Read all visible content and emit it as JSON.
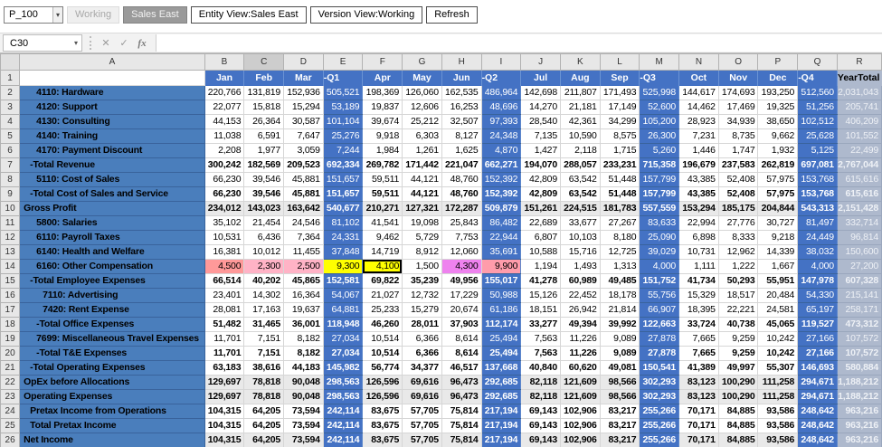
{
  "toolbar": {
    "member_selector": "P_100",
    "working": "Working",
    "sales_east": "Sales East",
    "entity_view": "Entity View:Sales East",
    "version_view": "Version View:Working",
    "refresh": "Refresh"
  },
  "formula_bar": {
    "name_box": "C30",
    "cancel_icon": "✕",
    "enter_icon": "✓",
    "fx_icon": "fx"
  },
  "colors": {
    "header_blue": "#4472c4",
    "row_label_blue": "#4a7ebc",
    "quarter_blue": "#4472c4",
    "year_total_grey": "#aeb9cd",
    "calc_row_grey": "#e9e9e9",
    "selection_border": "#000000"
  },
  "grid": {
    "column_letters": [
      "A",
      "B",
      "C",
      "D",
      "E",
      "F",
      "G",
      "H",
      "I",
      "J",
      "K",
      "L",
      "M",
      "N",
      "O",
      "P",
      "Q",
      "R"
    ],
    "active_column": "C",
    "period_headers": [
      "Jan",
      "Feb",
      "Mar",
      "-Q1",
      "Apr",
      "May",
      "Jun",
      "-Q2",
      "Jul",
      "Aug",
      "Sep",
      "-Q3",
      "Oct",
      "Nov",
      "Dec",
      "-Q4",
      "YearTotal"
    ],
    "quarter_col_indexes": [
      3,
      7,
      11,
      15
    ],
    "year_col_index": 16,
    "selected_cell": "F14",
    "highlight_row": 14,
    "highlight_cells": {
      "B": "#ff9999",
      "C": "#ffb3c6",
      "D": "#ffb3c6",
      "E": "#ffff00",
      "F": "#ffff00",
      "G": "#ffffff",
      "H": "#ee82ee",
      "I": "#ff9cab"
    },
    "rows": [
      {
        "label": "4110: Hardware",
        "indent": 2,
        "type": "member",
        "values": [
          "220,766",
          "131,819",
          "152,936",
          "505,521",
          "198,369",
          "126,060",
          "162,535",
          "486,964",
          "142,698",
          "211,807",
          "171,493",
          "525,998",
          "144,617",
          "174,693",
          "193,250",
          "512,560",
          "2,031,043"
        ]
      },
      {
        "label": "4120: Support",
        "indent": 2,
        "type": "member",
        "values": [
          "22,077",
          "15,818",
          "15,294",
          "53,189",
          "19,837",
          "12,606",
          "16,253",
          "48,696",
          "14,270",
          "21,181",
          "17,149",
          "52,600",
          "14,462",
          "17,469",
          "19,325",
          "51,256",
          "205,741"
        ]
      },
      {
        "label": "4130: Consulting",
        "indent": 2,
        "type": "member",
        "values": [
          "44,153",
          "26,364",
          "30,587",
          "101,104",
          "39,674",
          "25,212",
          "32,507",
          "97,393",
          "28,540",
          "42,361",
          "34,299",
          "105,200",
          "28,923",
          "34,939",
          "38,650",
          "102,512",
          "406,209"
        ]
      },
      {
        "label": "4140: Training",
        "indent": 2,
        "type": "member",
        "values": [
          "11,038",
          "6,591",
          "7,647",
          "25,276",
          "9,918",
          "6,303",
          "8,127",
          "24,348",
          "7,135",
          "10,590",
          "8,575",
          "26,300",
          "7,231",
          "8,735",
          "9,662",
          "25,628",
          "101,552"
        ]
      },
      {
        "label": "4170: Payment Discount",
        "indent": 2,
        "type": "member",
        "values": [
          "2,208",
          "1,977",
          "3,059",
          "7,244",
          "1,984",
          "1,261",
          "1,625",
          "4,870",
          "1,427",
          "2,118",
          "1,715",
          "5,260",
          "1,446",
          "1,747",
          "1,932",
          "5,125",
          "22,499"
        ]
      },
      {
        "label": "-Total Revenue",
        "indent": 1,
        "type": "total",
        "values": [
          "300,242",
          "182,569",
          "209,523",
          "692,334",
          "269,782",
          "171,442",
          "221,047",
          "662,271",
          "194,070",
          "288,057",
          "233,231",
          "715,358",
          "196,679",
          "237,583",
          "262,819",
          "697,081",
          "2,767,044"
        ]
      },
      {
        "label": "5110: Cost of Sales",
        "indent": 2,
        "type": "member",
        "values": [
          "66,230",
          "39,546",
          "45,881",
          "151,657",
          "59,511",
          "44,121",
          "48,760",
          "152,392",
          "42,809",
          "63,542",
          "51,448",
          "157,799",
          "43,385",
          "52,408",
          "57,975",
          "153,768",
          "615,616"
        ]
      },
      {
        "label": "-Total Cost of Sales and Service",
        "indent": 1,
        "type": "total",
        "values": [
          "66,230",
          "39,546",
          "45,881",
          "151,657",
          "59,511",
          "44,121",
          "48,760",
          "152,392",
          "42,809",
          "63,542",
          "51,448",
          "157,799",
          "43,385",
          "52,408",
          "57,975",
          "153,768",
          "615,616"
        ]
      },
      {
        "label": "Gross Profit",
        "indent": 0,
        "type": "calc",
        "values": [
          "234,012",
          "143,023",
          "163,642",
          "540,677",
          "210,271",
          "127,321",
          "172,287",
          "509,879",
          "151,261",
          "224,515",
          "181,783",
          "557,559",
          "153,294",
          "185,175",
          "204,844",
          "543,313",
          "2,151,428"
        ]
      },
      {
        "label": "5800: Salaries",
        "indent": 2,
        "type": "member",
        "values": [
          "35,102",
          "21,454",
          "24,546",
          "81,102",
          "41,541",
          "19,098",
          "25,843",
          "86,482",
          "22,689",
          "33,677",
          "27,267",
          "83,633",
          "22,994",
          "27,776",
          "30,727",
          "81,497",
          "332,714"
        ]
      },
      {
        "label": "6110: Payroll Taxes",
        "indent": 2,
        "type": "member",
        "values": [
          "10,531",
          "6,436",
          "7,364",
          "24,331",
          "9,462",
          "5,729",
          "7,753",
          "22,944",
          "6,807",
          "10,103",
          "8,180",
          "25,090",
          "6,898",
          "8,333",
          "9,218",
          "24,449",
          "96,814"
        ]
      },
      {
        "label": "6140: Health and Welfare",
        "indent": 2,
        "type": "member",
        "values": [
          "16,381",
          "10,012",
          "11,455",
          "37,848",
          "14,719",
          "8,912",
          "12,060",
          "35,691",
          "10,588",
          "15,716",
          "12,725",
          "39,029",
          "10,731",
          "12,962",
          "14,339",
          "38,032",
          "150,600"
        ]
      },
      {
        "label": "6160: Other Compensation",
        "indent": 2,
        "type": "member",
        "values": [
          "4,500",
          "2,300",
          "2,500",
          "9,300",
          "4,100",
          "1,500",
          "4,300",
          "9,900",
          "1,194",
          "1,493",
          "1,313",
          "4,000",
          "1,111",
          "1,222",
          "1,667",
          "4,000",
          "27,200"
        ]
      },
      {
        "label": "-Total Employee Expenses",
        "indent": 1,
        "type": "total",
        "values": [
          "66,514",
          "40,202",
          "45,865",
          "152,581",
          "69,822",
          "35,239",
          "49,956",
          "155,017",
          "41,278",
          "60,989",
          "49,485",
          "151,752",
          "41,734",
          "50,293",
          "55,951",
          "147,978",
          "607,328"
        ]
      },
      {
        "label": "7110: Advertising",
        "indent": 3,
        "type": "member",
        "values": [
          "23,401",
          "14,302",
          "16,364",
          "54,067",
          "21,027",
          "12,732",
          "17,229",
          "50,988",
          "15,126",
          "22,452",
          "18,178",
          "55,756",
          "15,329",
          "18,517",
          "20,484",
          "54,330",
          "215,141"
        ]
      },
      {
        "label": "7420: Rent Expense",
        "indent": 3,
        "type": "member",
        "values": [
          "28,081",
          "17,163",
          "19,637",
          "64,881",
          "25,233",
          "15,279",
          "20,674",
          "61,186",
          "18,151",
          "26,942",
          "21,814",
          "66,907",
          "18,395",
          "22,221",
          "24,581",
          "65,197",
          "258,171"
        ]
      },
      {
        "label": "-Total Office Expenses",
        "indent": 2,
        "type": "total",
        "values": [
          "51,482",
          "31,465",
          "36,001",
          "118,948",
          "46,260",
          "28,011",
          "37,903",
          "112,174",
          "33,277",
          "49,394",
          "39,992",
          "122,663",
          "33,724",
          "40,738",
          "45,065",
          "119,527",
          "473,312"
        ]
      },
      {
        "label": "7699: Miscellaneous Travel Expenses",
        "indent": 2,
        "type": "member",
        "values": [
          "11,701",
          "7,151",
          "8,182",
          "27,034",
          "10,514",
          "6,366",
          "8,614",
          "25,494",
          "7,563",
          "11,226",
          "9,089",
          "27,878",
          "7,665",
          "9,259",
          "10,242",
          "27,166",
          "107,572"
        ]
      },
      {
        "label": "-Total T&E Expenses",
        "indent": 2,
        "type": "total",
        "values": [
          "11,701",
          "7,151",
          "8,182",
          "27,034",
          "10,514",
          "6,366",
          "8,614",
          "25,494",
          "7,563",
          "11,226",
          "9,089",
          "27,878",
          "7,665",
          "9,259",
          "10,242",
          "27,166",
          "107,572"
        ]
      },
      {
        "label": "-Total Operating Expenses",
        "indent": 1,
        "type": "total",
        "values": [
          "63,183",
          "38,616",
          "44,183",
          "145,982",
          "56,774",
          "34,377",
          "46,517",
          "137,668",
          "40,840",
          "60,620",
          "49,081",
          "150,541",
          "41,389",
          "49,997",
          "55,307",
          "146,693",
          "580,884"
        ]
      },
      {
        "label": "OpEx before Allocations",
        "indent": 0,
        "type": "calc",
        "values": [
          "129,697",
          "78,818",
          "90,048",
          "298,563",
          "126,596",
          "69,616",
          "96,473",
          "292,685",
          "82,118",
          "121,609",
          "98,566",
          "302,293",
          "83,123",
          "100,290",
          "111,258",
          "294,671",
          "1,188,212"
        ]
      },
      {
        "label": "Operating Expenses",
        "indent": 0,
        "type": "calc",
        "values": [
          "129,697",
          "78,818",
          "90,048",
          "298,563",
          "126,596",
          "69,616",
          "96,473",
          "292,685",
          "82,118",
          "121,609",
          "98,566",
          "302,293",
          "83,123",
          "100,290",
          "111,258",
          "294,671",
          "1,188,212"
        ]
      },
      {
        "label": "Pretax Income from Operations",
        "indent": 1,
        "type": "total",
        "values": [
          "104,315",
          "64,205",
          "73,594",
          "242,114",
          "83,675",
          "57,705",
          "75,814",
          "217,194",
          "69,143",
          "102,906",
          "83,217",
          "255,266",
          "70,171",
          "84,885",
          "93,586",
          "248,642",
          "963,216"
        ]
      },
      {
        "label": "Total Pretax Income",
        "indent": 1,
        "type": "total",
        "values": [
          "104,315",
          "64,205",
          "73,594",
          "242,114",
          "83,675",
          "57,705",
          "75,814",
          "217,194",
          "69,143",
          "102,906",
          "83,217",
          "255,266",
          "70,171",
          "84,885",
          "93,586",
          "248,642",
          "963,216"
        ]
      },
      {
        "label": "Net Income",
        "indent": 0,
        "type": "calc",
        "values": [
          "104,315",
          "64,205",
          "73,594",
          "242,114",
          "83,675",
          "57,705",
          "75,814",
          "217,194",
          "69,143",
          "102,906",
          "83,217",
          "255,266",
          "70,171",
          "84,885",
          "93,586",
          "248,642",
          "963,216"
        ]
      }
    ]
  }
}
